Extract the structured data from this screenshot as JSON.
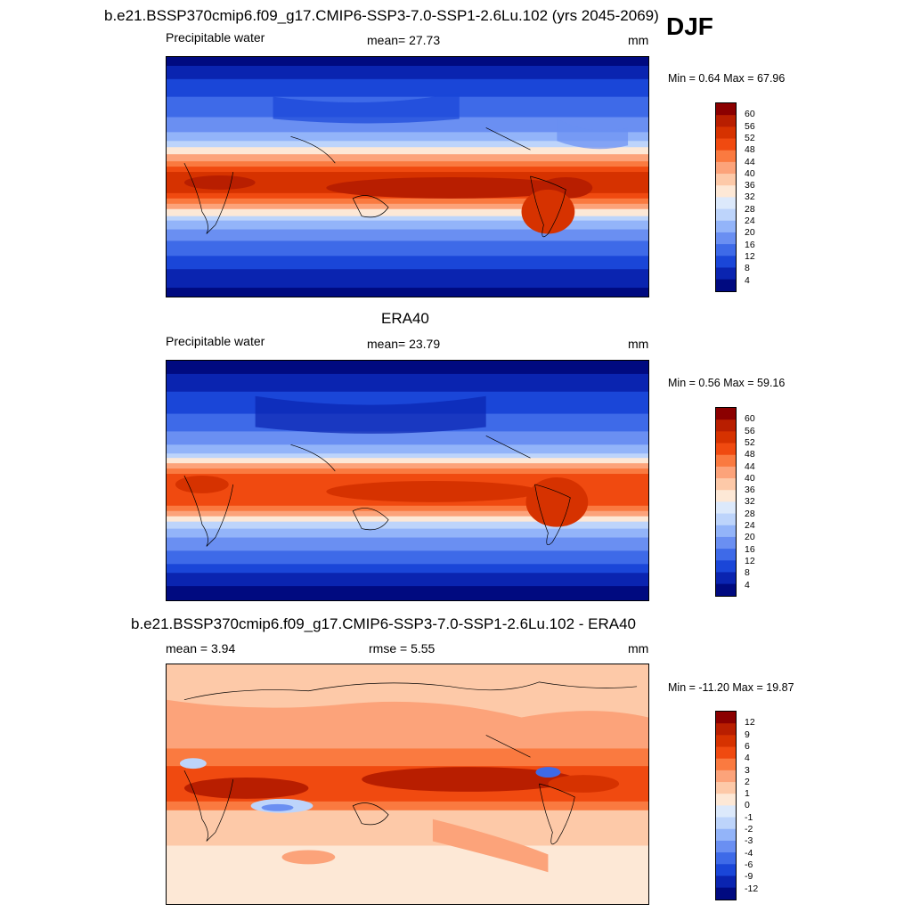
{
  "season": "DJF",
  "panels": [
    {
      "title": "b.e21.BSSP370cmip6.f09_g17.CMIP6-SSP3-7.0-SSP1-2.6Lu.102 (yrs 2045-2069)",
      "left_label": "Precipitable water",
      "center_label": "mean=  27.73",
      "units": "mm",
      "minmax": "Min =   0.64 Max =  67.96",
      "levels": [
        "60",
        "56",
        "52",
        "48",
        "44",
        "40",
        "36",
        "32",
        "28",
        "24",
        "20",
        "16",
        "12",
        "8",
        "4"
      ],
      "colors": [
        "#8b0000",
        "#b81e00",
        "#d63200",
        "#f04a10",
        "#fa7a40",
        "#fca37a",
        "#fdc9a8",
        "#fde8d6",
        "#dce9fb",
        "#bdd4fb",
        "#93b4f9",
        "#6a8ff2",
        "#3e6ae8",
        "#1a46d8",
        "#0a24b0",
        "#000a80"
      ]
    },
    {
      "title": "ERA40",
      "left_label": "Precipitable water",
      "center_label": "mean=  23.79",
      "units": "mm",
      "minmax": "Min =   0.56 Max =  59.16",
      "levels": [
        "60",
        "56",
        "52",
        "48",
        "44",
        "40",
        "36",
        "32",
        "28",
        "24",
        "20",
        "16",
        "12",
        "8",
        "4"
      ],
      "colors": [
        "#8b0000",
        "#b81e00",
        "#d63200",
        "#f04a10",
        "#fa7a40",
        "#fca37a",
        "#fdc9a8",
        "#fde8d6",
        "#dce9fb",
        "#bdd4fb",
        "#93b4f9",
        "#6a8ff2",
        "#3e6ae8",
        "#1a46d8",
        "#0a24b0",
        "#000a80"
      ]
    },
    {
      "title": "b.e21.BSSP370cmip6.f09_g17.CMIP6-SSP3-7.0-SSP1-2.6Lu.102 - ERA40",
      "left_label": "mean =   3.94",
      "center_label": "rmse =   5.55",
      "units": "mm",
      "minmax": "Min = -11.20 Max =  19.87",
      "levels": [
        "12",
        "9",
        "6",
        "4",
        "3",
        "2",
        "1",
        "0",
        "-1",
        "-2",
        "-3",
        "-4",
        "-6",
        "-9",
        "-12"
      ],
      "colors": [
        "#8b0000",
        "#b81e00",
        "#d63200",
        "#f04a10",
        "#fa7a40",
        "#fca37a",
        "#fdc9a8",
        "#fde8d6",
        "#dce9fb",
        "#bdd4fb",
        "#93b4f9",
        "#6a8ff2",
        "#3e6ae8",
        "#1a46d8",
        "#0a24b0",
        "#000a80"
      ]
    }
  ]
}
